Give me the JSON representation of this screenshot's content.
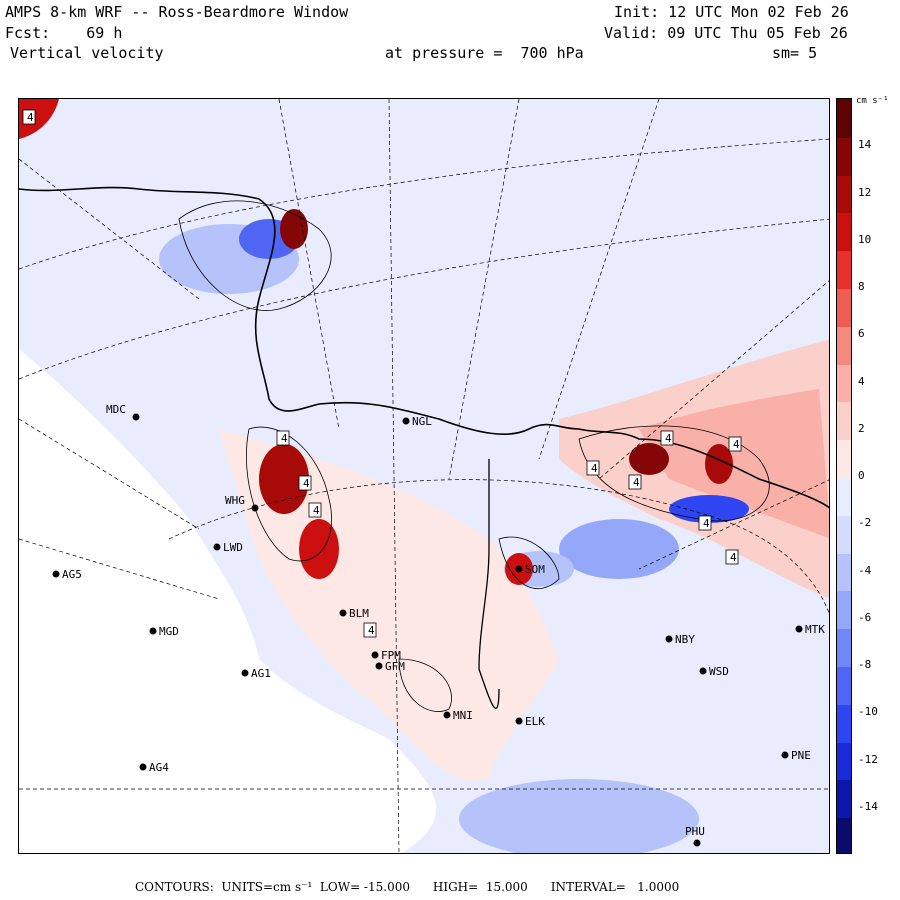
{
  "header": {
    "title": "AMPS 8-km WRF -- Ross-Beardmore Window",
    "init": "Init: 12 UTC Mon 02 Feb 26",
    "fcst_label": "Fcst:",
    "fcst_value": "69 h",
    "valid": "Valid: 09 UTC Thu 05 Feb 26",
    "field": "Vertical velocity",
    "pressure": "at pressure =  700 hPa",
    "smoothing": "sm= 5"
  },
  "colorbar": {
    "unit": "cm s⁻¹",
    "min": -16,
    "max": 16,
    "ticks": [
      14,
      12,
      10,
      8,
      6,
      4,
      2,
      0,
      -2,
      -4,
      -6,
      -8,
      -10,
      -12,
      -14
    ],
    "colors": [
      "#0b0b6e",
      "#0b17a8",
      "#1a2ad8",
      "#2f45f2",
      "#4f66f4",
      "#7088f6",
      "#95a7f8",
      "#b6c3fa",
      "#d4dcfc",
      "#e8ecfd",
      "#fde8e6",
      "#fbd0cb",
      "#f8b0a8",
      "#f38a80",
      "#ee5e55",
      "#e8312c",
      "#cc1010",
      "#a80a0a",
      "#850606",
      "#5e0303"
    ]
  },
  "stations": [
    {
      "name": "MDC",
      "label_side": "left"
    },
    {
      "name": "NGL",
      "label_side": "right"
    },
    {
      "name": "LWD",
      "label_side": "right"
    },
    {
      "name": "AG5",
      "label_side": "right"
    },
    {
      "name": "MGD",
      "label_side": "right"
    },
    {
      "name": "AG1",
      "label_side": "right"
    },
    {
      "name": "AG4",
      "label_side": "right"
    },
    {
      "name": "BLM",
      "label_side": "right"
    },
    {
      "name": "FPM",
      "label_side": "right"
    },
    {
      "name": "GFM",
      "label_side": "right"
    },
    {
      "name": "NBY",
      "label_side": "right"
    },
    {
      "name": "MTK",
      "label_side": "right"
    },
    {
      "name": "WSD",
      "label_side": "right"
    },
    {
      "name": "ELK",
      "label_side": "right"
    },
    {
      "name": "MNI",
      "label_side": "right"
    },
    {
      "name": "PNE",
      "label_side": "right"
    },
    {
      "name": "PHU",
      "label_side": "above"
    },
    {
      "name": "WHG",
      "label_side": "left"
    },
    {
      "name": "SOM",
      "label_side": "right"
    }
  ],
  "max_labels": [
    "4",
    "4",
    "4",
    "4",
    "4",
    "4",
    "4",
    "4",
    "4",
    "4",
    "4"
  ],
  "footer": {
    "contours_label": "CONTOURS:",
    "units": "UNITS=cm s⁻¹",
    "low": "LOW= -15.000",
    "high": "HIGH=  15.000",
    "interval": "INTERVAL=   1.0000"
  }
}
